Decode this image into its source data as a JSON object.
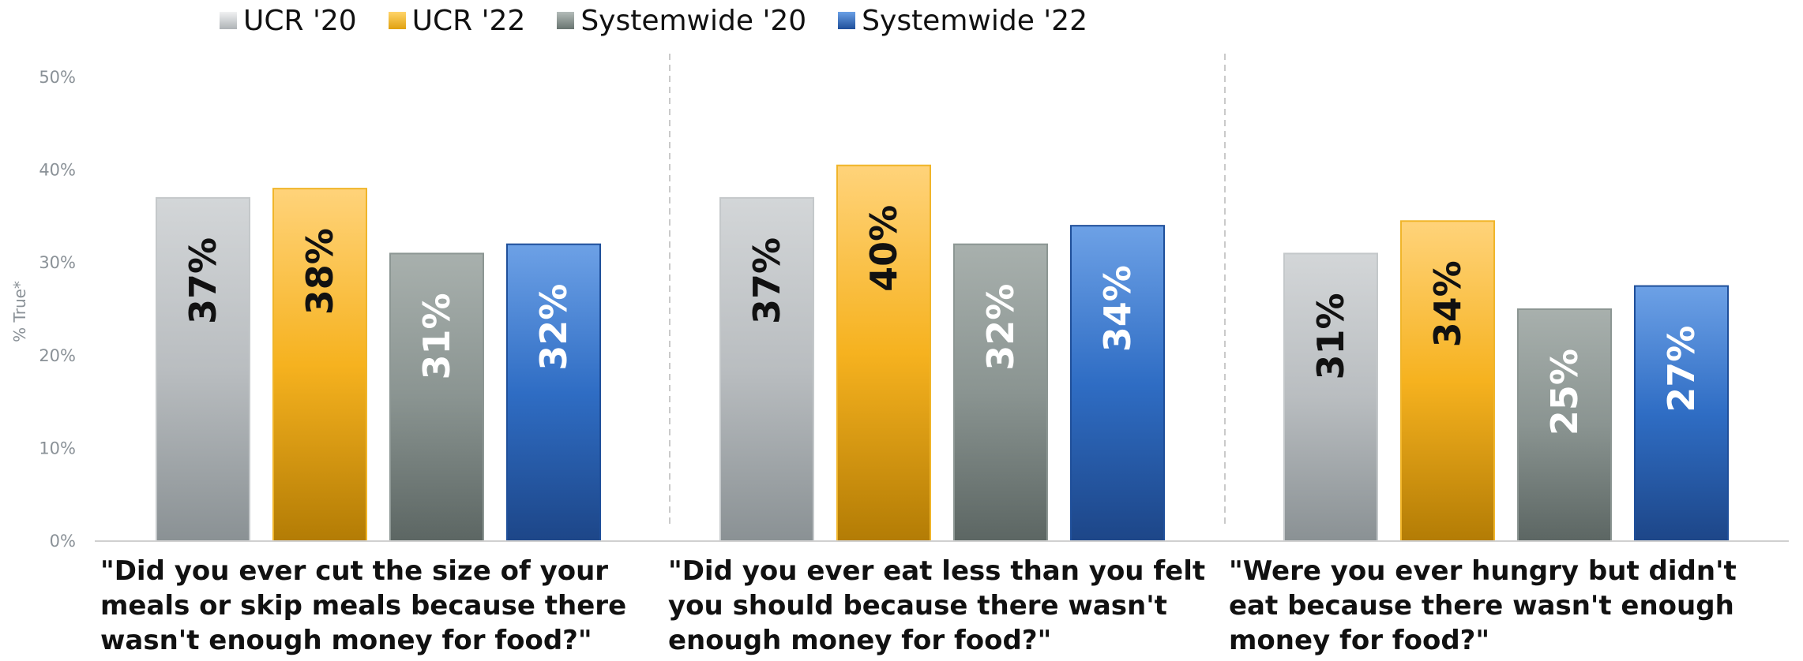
{
  "chart_data": {
    "type": "bar",
    "ylabel": "% True*",
    "ylim": [
      0,
      50
    ],
    "yticks": [
      "0%",
      "10%",
      "20%",
      "30%",
      "40%",
      "50%"
    ],
    "categories": [
      "\"Did you ever cut the size of your meals or skip meals because there wasn't enough money for food?\"",
      "\"Did you ever eat less than you felt you should because there wasn't enough money for food?\"",
      "\"Were you ever hungry but didn't eat because there wasn't enough money for food?\""
    ],
    "series": [
      {
        "name": "UCR '20",
        "values": [
          37,
          37,
          31
        ],
        "labels": [
          "37%",
          "37%",
          "31%"
        ],
        "color": "#c8cbcd",
        "label_color": "#111111"
      },
      {
        "name": "UCR '22",
        "values": [
          38,
          40.5,
          34.5
        ],
        "labels": [
          "38%",
          "40%",
          "34%"
        ],
        "color": "#f5b324",
        "label_color": "#111111"
      },
      {
        "name": "Systemwide '20",
        "values": [
          31,
          32,
          25
        ],
        "labels": [
          "31%",
          "32%",
          "25%"
        ],
        "color": "#8c9693",
        "label_color": "#ffffff"
      },
      {
        "name": "Systemwide '22",
        "values": [
          32,
          34,
          27.5
        ],
        "labels": [
          "32%",
          "34%",
          "27%"
        ],
        "color": "#3472c8",
        "label_color": "#ffffff"
      }
    ],
    "grid": false,
    "legend": "top"
  }
}
